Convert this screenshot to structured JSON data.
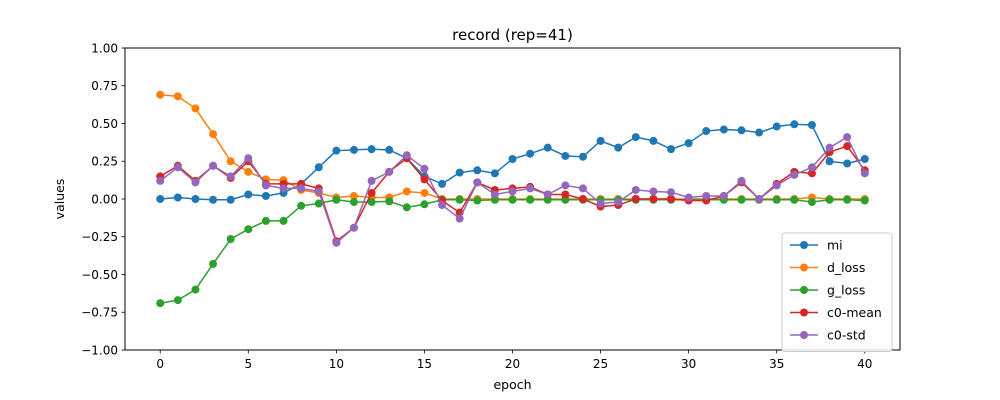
{
  "chart_data": {
    "type": "line",
    "title": "record (rep=41)",
    "xlabel": "epoch",
    "ylabel": "values",
    "xlim": [
      -2,
      42
    ],
    "ylim": [
      -1.0,
      1.0
    ],
    "xticks": [
      0,
      5,
      10,
      15,
      20,
      25,
      30,
      35,
      40
    ],
    "xtick_labels": [
      "0",
      "5",
      "10",
      "15",
      "20",
      "25",
      "30",
      "35",
      "40"
    ],
    "yticks": [
      -1.0,
      -0.75,
      -0.5,
      -0.25,
      0.0,
      0.25,
      0.5,
      0.75,
      1.0
    ],
    "ytick_labels": [
      "−1.00",
      "−0.75",
      "−0.50",
      "−0.25",
      "0.00",
      "0.25",
      "0.50",
      "0.75",
      "1.00"
    ],
    "grid": false,
    "legend_position": "lower-right",
    "x": [
      0,
      1,
      2,
      3,
      4,
      5,
      6,
      7,
      8,
      9,
      10,
      11,
      12,
      13,
      14,
      15,
      16,
      17,
      18,
      19,
      20,
      21,
      22,
      23,
      24,
      25,
      26,
      27,
      28,
      29,
      30,
      31,
      32,
      33,
      34,
      35,
      36,
      37,
      38,
      39,
      40
    ],
    "series": [
      {
        "name": "mi",
        "color": "#1f77b4",
        "values": [
          0.0,
          0.01,
          0.0,
          -0.005,
          -0.005,
          0.03,
          0.02,
          0.04,
          0.1,
          0.21,
          0.32,
          0.325,
          0.33,
          0.325,
          0.27,
          0.15,
          0.1,
          0.175,
          0.19,
          0.17,
          0.265,
          0.3,
          0.34,
          0.285,
          0.28,
          0.385,
          0.34,
          0.41,
          0.385,
          0.33,
          0.37,
          0.45,
          0.46,
          0.455,
          0.44,
          0.48,
          0.495,
          0.49,
          0.25,
          0.235,
          0.265
        ]
      },
      {
        "name": "d_loss",
        "color": "#ff7f0e",
        "values": [
          0.69,
          0.68,
          0.6,
          0.43,
          0.25,
          0.18,
          0.13,
          0.125,
          0.06,
          0.04,
          0.01,
          0.02,
          0.01,
          0.01,
          0.05,
          0.04,
          0.0,
          0.0,
          0.0,
          0.0,
          0.0,
          0.0,
          0.0,
          0.0,
          0.0,
          0.0,
          0.0,
          0.0,
          0.0,
          0.0,
          0.0,
          0.0,
          0.0,
          0.0,
          0.0,
          0.0,
          0.0,
          0.01,
          0.0,
          0.0,
          0.0
        ]
      },
      {
        "name": "g_loss",
        "color": "#2ca02c",
        "values": [
          -0.69,
          -0.67,
          -0.6,
          -0.43,
          -0.265,
          -0.2,
          -0.145,
          -0.145,
          -0.045,
          -0.03,
          -0.005,
          -0.02,
          -0.02,
          -0.015,
          -0.055,
          -0.035,
          -0.005,
          -0.005,
          -0.01,
          -0.005,
          -0.005,
          -0.005,
          -0.005,
          -0.005,
          -0.005,
          -0.005,
          -0.005,
          -0.005,
          -0.005,
          -0.005,
          -0.005,
          -0.005,
          -0.005,
          -0.005,
          -0.005,
          -0.005,
          -0.005,
          -0.02,
          -0.005,
          -0.005,
          -0.01
        ]
      },
      {
        "name": "c0-mean",
        "color": "#d62728",
        "values": [
          0.15,
          0.22,
          0.12,
          0.22,
          0.14,
          0.25,
          0.1,
          0.1,
          0.1,
          0.07,
          -0.28,
          -0.19,
          0.04,
          0.18,
          0.27,
          0.13,
          -0.01,
          -0.09,
          0.11,
          0.06,
          0.07,
          0.08,
          0.03,
          0.03,
          0.0,
          -0.05,
          -0.04,
          0.0,
          0.0,
          0.0,
          -0.01,
          -0.01,
          0.02,
          0.11,
          0.0,
          0.1,
          0.18,
          0.17,
          0.31,
          0.35,
          0.19
        ]
      },
      {
        "name": "c0-std",
        "color": "#9467bd",
        "values": [
          0.12,
          0.21,
          0.11,
          0.22,
          0.15,
          0.27,
          0.09,
          0.07,
          0.07,
          0.05,
          -0.29,
          -0.19,
          0.12,
          0.18,
          0.29,
          0.2,
          -0.04,
          -0.13,
          0.11,
          0.03,
          0.05,
          0.07,
          0.03,
          0.09,
          0.07,
          -0.03,
          -0.02,
          0.06,
          0.05,
          0.045,
          0.01,
          0.02,
          0.02,
          0.12,
          0.0,
          0.09,
          0.16,
          0.21,
          0.34,
          0.41,
          0.17
        ]
      }
    ]
  }
}
